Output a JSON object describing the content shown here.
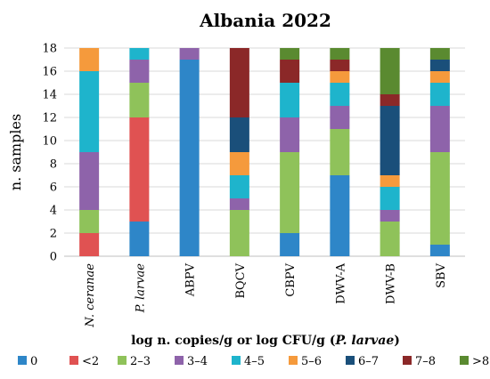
{
  "chart_data": {
    "type": "bar",
    "stacked": true,
    "title": "Albania 2022",
    "ylabel": "n. samples",
    "xlabel_parts": [
      {
        "text": "log n. copies/g or log CFU/g (",
        "italic": false
      },
      {
        "text": "P. larvae",
        "italic": true
      },
      {
        "text": ")",
        "italic": false
      }
    ],
    "categories": [
      "N. ceranae",
      "P. larvae",
      "ABPV",
      "BQCV",
      "CBPV",
      "DWV-A",
      "DWV-B",
      "SBV"
    ],
    "italic_categories": [
      true,
      true,
      false,
      false,
      false,
      false,
      false,
      false
    ],
    "yticks": [
      "0",
      "2",
      "4",
      "6",
      "8",
      "10",
      "12",
      "14",
      "16",
      "18"
    ],
    "ylim": [
      0,
      18
    ],
    "grid": true,
    "legend_position": "bottom",
    "series": [
      {
        "name": "0",
        "color": "#2e86c8",
        "values": [
          0,
          3,
          17,
          0,
          2,
          7,
          0,
          1
        ]
      },
      {
        "name": "<2",
        "color": "#e05252",
        "values": [
          2,
          9,
          0,
          0,
          0,
          0,
          0,
          0
        ]
      },
      {
        "name": "2–3",
        "color": "#8fc25a",
        "values": [
          2,
          3,
          0,
          4,
          7,
          4,
          3,
          8
        ]
      },
      {
        "name": "3–4",
        "color": "#8e63aa",
        "values": [
          5,
          2,
          1,
          1,
          3,
          2,
          1,
          4
        ]
      },
      {
        "name": "4–5",
        "color": "#1eb4cc",
        "values": [
          7,
          1,
          0,
          2,
          3,
          2,
          2,
          2
        ]
      },
      {
        "name": "5–6",
        "color": "#f59a3c",
        "values": [
          2,
          0,
          0,
          2,
          0,
          1,
          1,
          1
        ]
      },
      {
        "name": "6–7",
        "color": "#1a4f7a",
        "values": [
          0,
          0,
          0,
          3,
          0,
          0,
          6,
          1
        ]
      },
      {
        "name": "7–8",
        "color": "#8b2828",
        "values": [
          0,
          0,
          0,
          6,
          2,
          1,
          1,
          0
        ]
      },
      {
        "name": ">8",
        "color": "#5a8a30",
        "values": [
          0,
          0,
          0,
          0,
          1,
          1,
          4,
          1
        ]
      }
    ]
  }
}
